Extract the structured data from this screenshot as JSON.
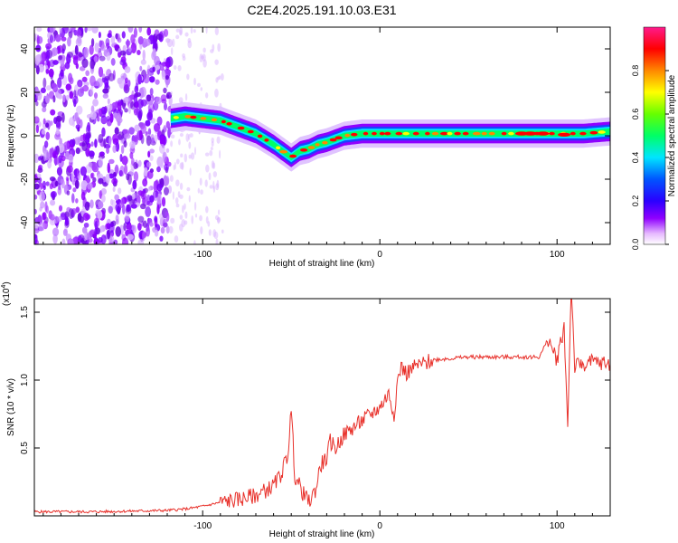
{
  "title": "C2E4.2025.191.10.03.E31",
  "chart_data": [
    {
      "type": "heatmap",
      "xlabel": "Height of straight line (km)",
      "ylabel": "Frequency (Hz)",
      "xlim": [
        -195,
        130
      ],
      "ylim": [
        -50,
        50
      ],
      "x_ticks": [
        "-100",
        "0",
        "100"
      ],
      "x_tick_values": [
        -100,
        0,
        100
      ],
      "y_ticks": [
        "40",
        "20",
        "0",
        "-20",
        "-40"
      ],
      "y_tick_values": [
        40,
        20,
        0,
        -20,
        -40
      ],
      "colorbar": {
        "label": "Normalized spectral amplitude",
        "range": [
          0,
          1
        ],
        "ticks": [
          "0.0",
          "0.2",
          "0.4",
          "0.6",
          "0.8"
        ],
        "tick_values": [
          0.0,
          0.2,
          0.4,
          0.6,
          0.8
        ],
        "colors": [
          "#ffffff",
          "#e6b8ff",
          "#8f00ff",
          "#2a00ff",
          "#0055ff",
          "#00e5ff",
          "#00ff66",
          "#66ff00",
          "#ffff00",
          "#ff8800",
          "#ff0000",
          "#ff1a8c"
        ]
      },
      "signal_track": {
        "x": [
          -118,
          -110,
          -100,
          -90,
          -80,
          -70,
          -60,
          -55,
          -50,
          -45,
          -40,
          -35,
          -30,
          -20,
          -10,
          0,
          10,
          20,
          40,
          60,
          80,
          100,
          115,
          130
        ],
        "y": [
          8,
          9,
          8,
          7,
          4,
          1,
          -4,
          -7,
          -10,
          -7,
          -6,
          -4,
          -3,
          0,
          1,
          1,
          1,
          1,
          1,
          1,
          1,
          1,
          1,
          2
        ]
      },
      "noise_region_x": [
        -195,
        -118
      ]
    },
    {
      "type": "line",
      "xlabel": "Height of straight line (km)",
      "ylabel": "SNR (10 * v/v)",
      "y_multiplier": "(x10",
      "y_multiplier_exp": "4",
      "xlim": [
        -195,
        130
      ],
      "ylim": [
        0,
        1.6
      ],
      "x_ticks": [
        "-100",
        "0",
        "100"
      ],
      "x_tick_values": [
        -100,
        0,
        100
      ],
      "y_ticks": [
        "1.5",
        "1.0",
        "0.5"
      ],
      "y_tick_values": [
        1.5,
        1.0,
        0.5
      ],
      "line_color": "#e8302a",
      "series": [
        {
          "x": [
            -195,
            -160,
            -120,
            -110,
            -100,
            -90,
            -80,
            -70,
            -60,
            -56,
            -52,
            -50,
            -48,
            -44,
            -40,
            -36,
            -34,
            -32,
            -30,
            -28,
            -25,
            -20,
            -15,
            -10,
            -5,
            0,
            5,
            8,
            10,
            12,
            15,
            20,
            25,
            30,
            40,
            50,
            60,
            70,
            80,
            90,
            95,
            100,
            104,
            106,
            108,
            110,
            115,
            120,
            130
          ],
          "y": [
            0.03,
            0.03,
            0.04,
            0.05,
            0.07,
            0.1,
            0.12,
            0.15,
            0.22,
            0.3,
            0.45,
            0.78,
            0.3,
            0.18,
            0.1,
            0.2,
            0.35,
            0.4,
            0.42,
            0.55,
            0.5,
            0.6,
            0.65,
            0.7,
            0.75,
            0.8,
            0.9,
            0.75,
            1.0,
            1.1,
            1.05,
            1.1,
            1.12,
            1.15,
            1.16,
            1.17,
            1.17,
            1.17,
            1.17,
            1.17,
            1.3,
            1.15,
            1.4,
            0.65,
            1.7,
            1.1,
            1.12,
            1.13,
            1.12
          ]
        }
      ]
    }
  ]
}
